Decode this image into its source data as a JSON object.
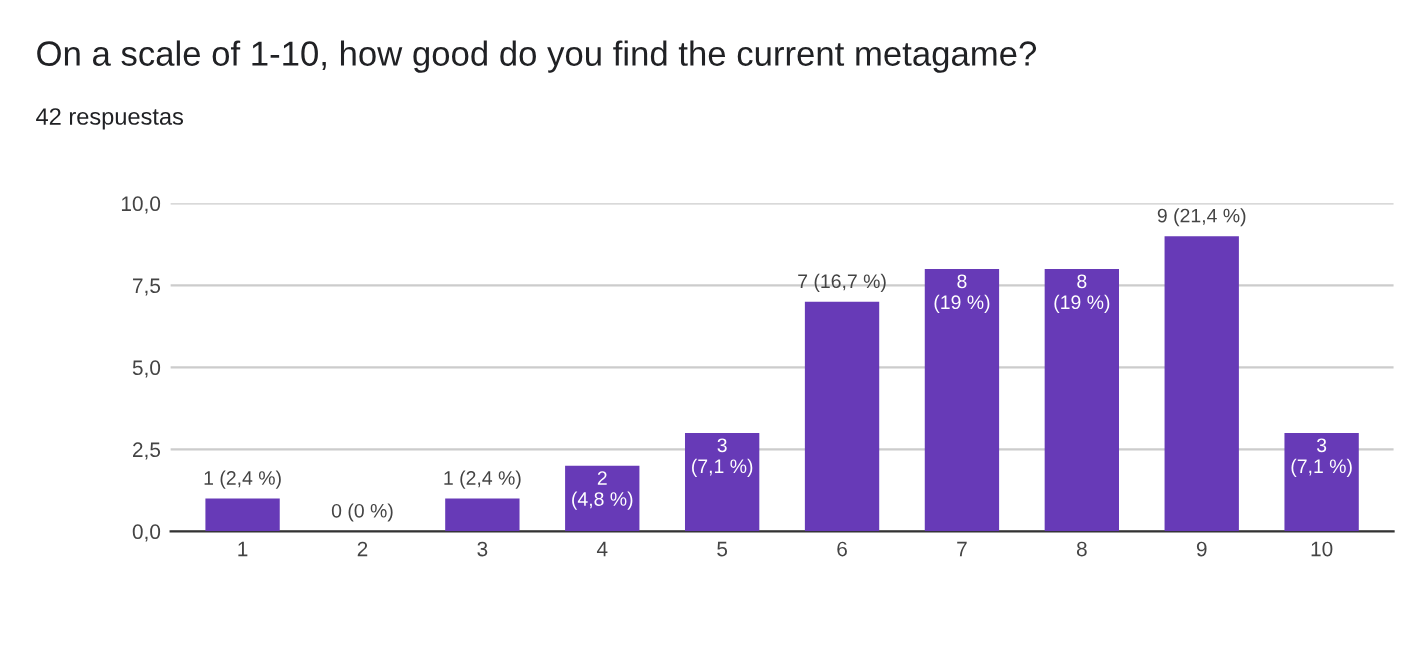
{
  "chart_data": {
    "type": "bar",
    "title": "On a scale of 1-10, how good do you find the current metagame?",
    "subtitle": "42 respuestas",
    "categories": [
      "1",
      "2",
      "3",
      "4",
      "5",
      "6",
      "7",
      "8",
      "9",
      "10"
    ],
    "values": [
      1,
      0,
      1,
      2,
      3,
      7,
      8,
      8,
      9,
      3
    ],
    "value_labels": [
      "1 (2,4 %)",
      "0 (0 %)",
      "1 (2,4 %)",
      "2\n(4,8 %)",
      "3\n(7,1 %)",
      "7 (16,7 %)",
      "8\n(19 %)",
      "8\n(19 %)",
      "9 (21,4 %)",
      "3\n(7,1 %)"
    ],
    "color": "#673ab7",
    "ylim": [
      0,
      10
    ],
    "yticks": [
      {
        "value": 0,
        "label": "0,0"
      },
      {
        "value": 2.5,
        "label": "2,5"
      },
      {
        "value": 5,
        "label": "5,0"
      },
      {
        "value": 7.5,
        "label": "7,5"
      },
      {
        "value": 10,
        "label": "10,0"
      }
    ],
    "grid": "y"
  }
}
